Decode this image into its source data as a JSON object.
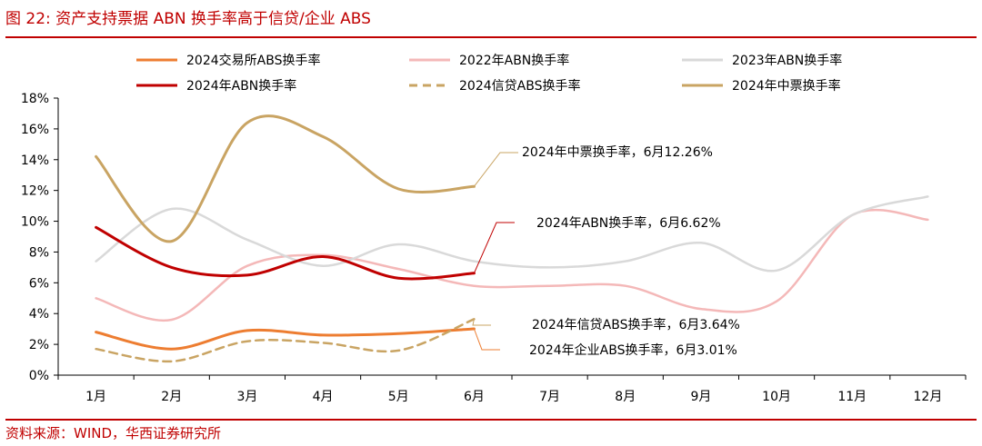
{
  "figure_title": "图 22:  资产支持票据 ABN 换手率高于信贷/企业 ABS",
  "source": "资料来源：WIND，华西证券研究所",
  "colors": {
    "accent_red": "#c00000",
    "axis": "#000000"
  },
  "chart_data": {
    "type": "line",
    "title": "",
    "xlabel": "",
    "ylabel": "",
    "ylim": [
      0,
      18
    ],
    "y_ticks": [
      0,
      2,
      4,
      6,
      8,
      10,
      12,
      14,
      16,
      18
    ],
    "y_tick_suffix": "%",
    "grid": false,
    "legend_position": "top",
    "categories": [
      "1月",
      "2月",
      "3月",
      "4月",
      "5月",
      "6月",
      "7月",
      "8月",
      "9月",
      "10月",
      "11月",
      "12月"
    ],
    "series": [
      {
        "name": "2024交易所ABS换手率",
        "color": "#ed7d31",
        "dash": "",
        "width": 3,
        "values": [
          2.8,
          1.7,
          2.9,
          2.6,
          2.7,
          3.01,
          null,
          null,
          null,
          null,
          null,
          null
        ]
      },
      {
        "name": "2022年ABN换手率",
        "color": "#f4b8b8",
        "dash": "",
        "width": 2.5,
        "values": [
          5.0,
          3.6,
          7.1,
          7.8,
          6.9,
          5.8,
          5.8,
          5.8,
          4.3,
          4.8,
          10.4,
          10.1
        ]
      },
      {
        "name": "2023年ABN换手率",
        "color": "#d9d9d9",
        "dash": "",
        "width": 2.5,
        "values": [
          7.4,
          10.8,
          8.8,
          7.1,
          8.5,
          7.4,
          7.0,
          7.4,
          8.6,
          6.8,
          10.4,
          11.6
        ]
      },
      {
        "name": "2024年ABN换手率",
        "color": "#c00000",
        "dash": "",
        "width": 3,
        "values": [
          9.6,
          7.0,
          6.5,
          7.7,
          6.3,
          6.62,
          null,
          null,
          null,
          null,
          null,
          null
        ]
      },
      {
        "name": "2024信贷ABS换手率",
        "color": "#c9a463",
        "dash": "9,6",
        "width": 2.5,
        "values": [
          1.7,
          0.9,
          2.2,
          2.1,
          1.6,
          3.64,
          null,
          null,
          null,
          null,
          null,
          null
        ]
      },
      {
        "name": "2024年中票换手率",
        "color": "#c9a463",
        "dash": "",
        "width": 3,
        "values": [
          14.2,
          8.7,
          16.4,
          15.5,
          12.1,
          12.26,
          null,
          null,
          null,
          null,
          null,
          null
        ]
      }
    ],
    "annotations": [
      {
        "text": "2024年中票换手率，6月12.26%",
        "series": 5
      },
      {
        "text": "2024年ABN换手率，6月6.62%",
        "series": 3
      },
      {
        "text": "2024年信贷ABS换手率，6月3.64%",
        "series": 4
      },
      {
        "text": "2024年企业ABS换手率，6月3.01%",
        "series": 0
      }
    ]
  }
}
